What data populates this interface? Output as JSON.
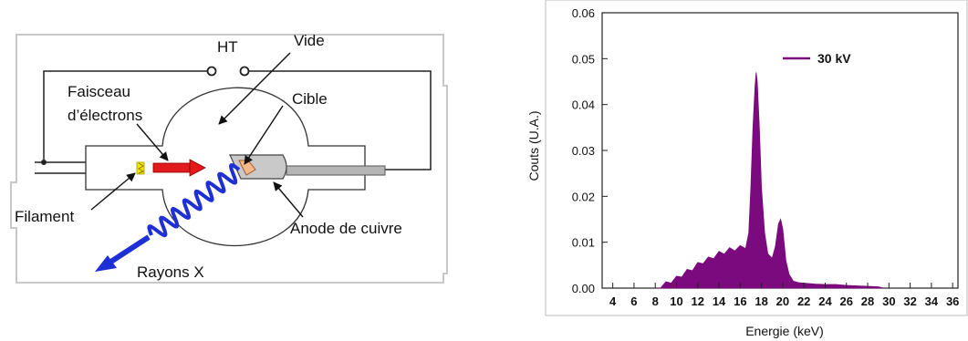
{
  "diagram": {
    "labels": {
      "ht": "HT",
      "vide": "Vide",
      "faisceau_line1": "Faisceau",
      "faisceau_line2": "d’électrons",
      "cible": "Cible",
      "filament": "Filament",
      "anode": "Anode de cuivre",
      "rayons": "Rayons X"
    },
    "colors": {
      "electron_beam": "#e11b1b",
      "xray": "#1f2fd6",
      "filament": "#f2e500",
      "target": "#f3b98a",
      "wire": "#222222"
    }
  },
  "chart_data": {
    "type": "area",
    "title": "",
    "xlabel": "Energie (keV)",
    "ylabel": "Couts (U.A.)",
    "xlim": [
      3,
      36.5
    ],
    "ylim": [
      0,
      0.06
    ],
    "xticks": [
      4,
      6,
      8,
      10,
      12,
      14,
      16,
      18,
      20,
      22,
      24,
      26,
      28,
      30,
      32,
      34,
      36
    ],
    "yticks": [
      0.0,
      0.01,
      0.02,
      0.03,
      0.04,
      0.05,
      0.06
    ],
    "ytick_labels": [
      "0.00",
      "0.01",
      "0.02",
      "0.03",
      "0.04",
      "0.05",
      "0.06"
    ],
    "grid": false,
    "legend_position": "top-right",
    "series": [
      {
        "name": "30 kV",
        "color": "#7b0a7e",
        "x": [
          8,
          8.5,
          9,
          9.5,
          10,
          10.5,
          11,
          11.5,
          12,
          12.5,
          13,
          13.5,
          14,
          14.5,
          15,
          15.5,
          16,
          16.5,
          16.8,
          17.0,
          17.2,
          17.4,
          17.5,
          17.6,
          17.8,
          18.0,
          18.3,
          18.6,
          19.0,
          19.3,
          19.6,
          19.8,
          20.0,
          20.3,
          20.6,
          21.0,
          21.5,
          22,
          23,
          24,
          25,
          26,
          27,
          28,
          29,
          29.5
        ],
        "y": [
          0.0,
          0.0003,
          0.0008,
          0.0015,
          0.002,
          0.0028,
          0.0035,
          0.0042,
          0.005,
          0.0057,
          0.0062,
          0.0068,
          0.0074,
          0.0078,
          0.0082,
          0.0085,
          0.0087,
          0.009,
          0.012,
          0.022,
          0.035,
          0.044,
          0.047,
          0.045,
          0.035,
          0.022,
          0.012,
          0.0075,
          0.0065,
          0.009,
          0.014,
          0.015,
          0.013,
          0.006,
          0.003,
          0.0015,
          0.0012,
          0.0011,
          0.0009,
          0.0008,
          0.0008,
          0.0006,
          0.0005,
          0.0004,
          0.0003,
          0.0
        ]
      }
    ]
  }
}
